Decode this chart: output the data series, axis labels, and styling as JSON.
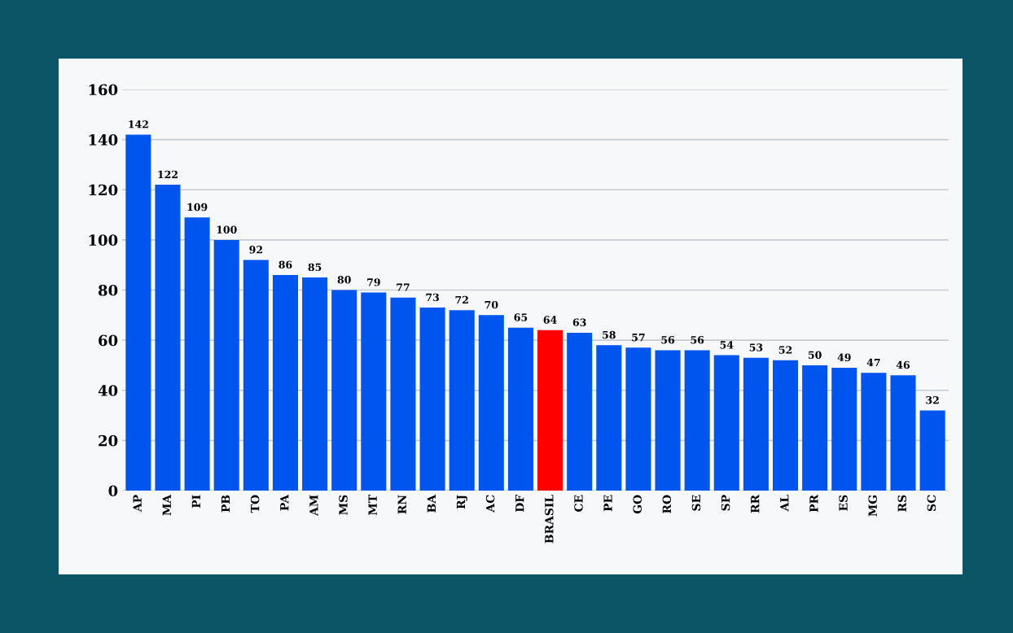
{
  "chart_data": {
    "type": "bar",
    "categories": [
      "AP",
      "MA",
      "PI",
      "PB",
      "TO",
      "PA",
      "AM",
      "MS",
      "MT",
      "RN",
      "BA",
      "RJ",
      "AC",
      "DF",
      "BRASIL",
      "CE",
      "PE",
      "GO",
      "RO",
      "SE",
      "SP",
      "RR",
      "AL",
      "PR",
      "ES",
      "MG",
      "RS",
      "SC"
    ],
    "values": [
      142,
      122,
      109,
      100,
      92,
      86,
      85,
      80,
      79,
      77,
      73,
      72,
      70,
      65,
      64,
      63,
      58,
      57,
      56,
      56,
      54,
      53,
      52,
      50,
      49,
      47,
      46,
      32
    ],
    "data_labels": true,
    "colors": [
      "#0055ee",
      "#0055ee",
      "#0055ee",
      "#0055ee",
      "#0055ee",
      "#0055ee",
      "#0055ee",
      "#0055ee",
      "#0055ee",
      "#0055ee",
      "#0055ee",
      "#0055ee",
      "#0055ee",
      "#0055ee",
      "#ff0000",
      "#0055ee",
      "#0055ee",
      "#0055ee",
      "#0055ee",
      "#0055ee",
      "#0055ee",
      "#0055ee",
      "#0055ee",
      "#0055ee",
      "#0055ee",
      "#0055ee",
      "#0055ee",
      "#0055ee"
    ],
    "ylim": [
      0,
      160
    ],
    "yticks": [
      0,
      20,
      40,
      60,
      80,
      100,
      120,
      140,
      160
    ],
    "grid": "y",
    "legend": false
  }
}
